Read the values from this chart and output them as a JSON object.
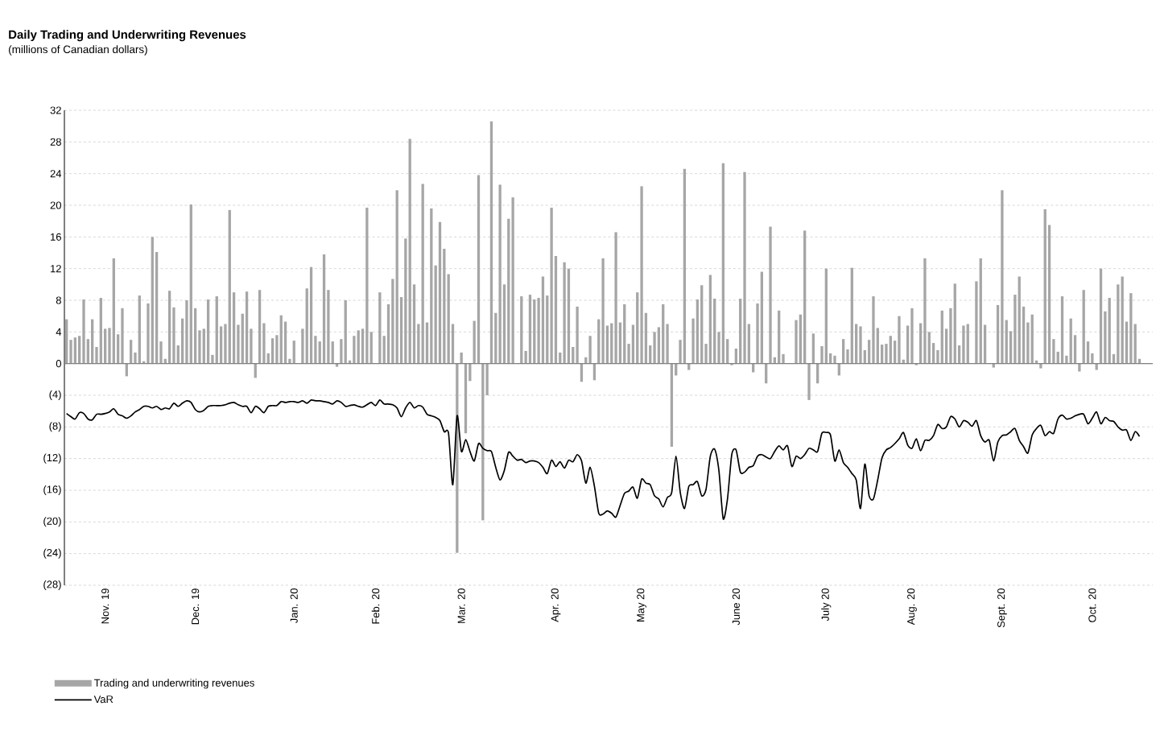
{
  "chart_data": {
    "type": "bar",
    "title": "Daily Trading and Underwriting Revenues",
    "subtitle": "(millions of Canadian dollars)",
    "categories": [
      null,
      null,
      null,
      null,
      null,
      null,
      null,
      null,
      null,
      "Nov. 19",
      null,
      null,
      null,
      null,
      null,
      null,
      null,
      null,
      null,
      null,
      null,
      null,
      null,
      null,
      null,
      null,
      null,
      null,
      null,
      null,
      "Dec. 19",
      null,
      null,
      null,
      null,
      null,
      null,
      null,
      null,
      null,
      null,
      null,
      null,
      null,
      null,
      null,
      null,
      null,
      null,
      null,
      null,
      null,
      null,
      "Jan. 20",
      null,
      null,
      null,
      null,
      null,
      null,
      null,
      null,
      null,
      null,
      null,
      null,
      null,
      null,
      null,
      null,
      null,
      null,
      "Feb. 20",
      null,
      null,
      null,
      null,
      null,
      null,
      null,
      null,
      null,
      null,
      null,
      null,
      null,
      null,
      null,
      null,
      null,
      null,
      null,
      "Mar. 20",
      null,
      null,
      null,
      null,
      null,
      null,
      null,
      null,
      null,
      null,
      null,
      null,
      null,
      null,
      null,
      null,
      null,
      null,
      null,
      null,
      null,
      "Apr. 20",
      null,
      null,
      null,
      null,
      null,
      null,
      null,
      null,
      null,
      null,
      null,
      null,
      null,
      null,
      null,
      null,
      null,
      null,
      null,
      "May 20",
      null,
      null,
      null,
      null,
      null,
      null,
      null,
      null,
      null,
      null,
      null,
      null,
      null,
      null,
      null,
      null,
      null,
      null,
      null,
      null,
      null,
      "June 20",
      null,
      null,
      null,
      null,
      null,
      null,
      null,
      null,
      null,
      null,
      null,
      null,
      null,
      null,
      null,
      null,
      null,
      null,
      null,
      null,
      "July 20",
      null,
      null,
      null,
      null,
      null,
      null,
      null,
      null,
      null,
      null,
      null,
      null,
      null,
      null,
      null,
      null,
      null,
      null,
      null,
      "Aug. 20",
      null,
      null,
      null,
      null,
      null,
      null,
      null,
      null,
      null,
      null,
      null,
      null,
      null,
      null,
      null,
      null,
      null,
      null,
      null,
      null,
      "Sept. 20",
      null,
      null,
      null,
      null,
      null,
      null,
      null,
      null,
      null,
      null,
      null,
      null,
      null,
      null,
      null,
      null,
      null,
      null,
      null,
      null,
      "Oct. 20",
      null,
      null,
      null,
      null,
      null,
      null,
      null,
      null,
      null,
      null,
      null
    ],
    "series": [
      {
        "name": "Trading and underwriting revenues",
        "color": "#a6a6a6",
        "values": [
          5.6,
          3.0,
          3.3,
          3.5,
          8.1,
          3.1,
          5.6,
          2.1,
          8.3,
          4.4,
          4.5,
          13.3,
          3.7,
          7.0,
          -1.6,
          3.0,
          1.4,
          8.6,
          0.3,
          7.6,
          16.0,
          14.1,
          2.8,
          0.6,
          9.2,
          7.1,
          2.3,
          5.7,
          8.0,
          20.1,
          7.0,
          4.2,
          4.4,
          8.1,
          1.1,
          8.5,
          4.7,
          5.0,
          19.4,
          9.0,
          4.9,
          6.3,
          9.1,
          4.4,
          -1.8,
          9.3,
          5.1,
          1.3,
          3.2,
          3.6,
          6.1,
          5.3,
          0.6,
          2.9,
          null,
          4.4,
          9.5,
          12.2,
          3.5,
          2.8,
          13.8,
          9.3,
          2.8,
          -0.4,
          3.1,
          8.0,
          0.4,
          3.5,
          4.2,
          4.4,
          19.7,
          4.0,
          null,
          9.0,
          3.5,
          7.5,
          10.7,
          21.9,
          8.4,
          15.8,
          28.4,
          10.0,
          5.0,
          22.7,
          5.2,
          19.6,
          12.4,
          17.9,
          14.5,
          11.3,
          5.0,
          -23.9,
          1.4,
          -8.8,
          -2.2,
          5.4,
          23.8,
          -19.8,
          -4.0,
          30.6,
          6.4,
          22.6,
          10.0,
          18.3,
          21.0,
          null,
          8.5,
          1.6,
          8.7,
          8.1,
          8.3,
          11.0,
          8.6,
          19.7,
          13.6,
          1.4,
          12.8,
          12.0,
          2.1,
          7.2,
          -2.3,
          0.8,
          3.5,
          -2.1,
          5.6,
          13.3,
          4.8,
          5.1,
          16.6,
          5.2,
          7.5,
          2.5,
          4.9,
          9.0,
          22.4,
          6.4,
          2.3,
          4.0,
          4.6,
          7.5,
          5.0,
          -10.5,
          -1.5,
          3.0,
          24.6,
          -0.8,
          5.7,
          8.1,
          9.9,
          2.5,
          11.2,
          8.2,
          4.0,
          25.3,
          3.1,
          -0.2,
          1.9,
          8.2,
          24.2,
          5.0,
          -1.1,
          7.6,
          11.6,
          -2.5,
          17.3,
          0.8,
          6.7,
          1.2,
          null,
          null,
          5.5,
          6.2,
          16.8,
          -4.6,
          3.8,
          -2.5,
          2.2,
          12.0,
          1.3,
          1.0,
          -1.5,
          3.1,
          1.8,
          12.1,
          5.0,
          4.7,
          1.7,
          3.0,
          8.5,
          4.5,
          2.4,
          2.5,
          3.5,
          2.9,
          6.0,
          0.5,
          4.8,
          7.0,
          -0.2,
          5.1,
          13.3,
          4.0,
          2.6,
          1.7,
          6.7,
          4.4,
          7.0,
          10.1,
          2.3,
          4.8,
          5.0,
          null,
          10.4,
          13.3,
          4.9,
          null,
          -0.5,
          7.4,
          21.9,
          5.5,
          4.1,
          8.7,
          11.0,
          7.2,
          5.2,
          6.2,
          0.4,
          -0.6,
          19.5,
          17.5,
          3.1,
          1.5,
          8.5,
          1.0,
          5.7,
          3.6,
          -1.0,
          9.3,
          2.8,
          1.3,
          -0.8,
          12.0,
          6.6,
          8.3,
          1.2,
          10.0,
          11.0,
          5.3,
          8.9,
          5.0,
          0.6
        ]
      },
      {
        "name": "VaR",
        "type": "line",
        "color": "#000000",
        "values": [
          -6.3,
          -6.7,
          -7.0,
          -6.2,
          -6.3,
          -7.0,
          -7.1,
          -6.4,
          -6.4,
          -6.3,
          -6.1,
          -5.7,
          -6.4,
          -6.6,
          -6.9,
          -6.6,
          -6.1,
          -5.8,
          -5.4,
          -5.4,
          -5.6,
          -5.4,
          -5.8,
          -5.6,
          -5.7,
          -5.0,
          -5.4,
          -5.0,
          -4.7,
          -4.9,
          -5.8,
          -6.1,
          -5.9,
          -5.4,
          -5.3,
          -5.3,
          -5.3,
          -5.2,
          -5.0,
          -4.9,
          -5.2,
          -5.4,
          -5.4,
          -6.2,
          -5.4,
          -5.7,
          -6.2,
          -5.4,
          -5.3,
          -5.3,
          -4.8,
          -4.9,
          -4.8,
          -4.8,
          -4.9,
          -4.7,
          -5.0,
          -4.6,
          -4.7,
          -4.7,
          -4.8,
          -4.9,
          -5.1,
          -4.7,
          -4.9,
          -5.4,
          -5.3,
          -5.2,
          -5.4,
          -5.5,
          -5.2,
          -4.9,
          -5.3,
          -4.6,
          -5.1,
          -5.1,
          -5.2,
          -5.6,
          -6.7,
          -5.6,
          -4.9,
          -5.6,
          -5.3,
          -5.5,
          -6.4,
          -6.6,
          -6.8,
          -7.2,
          -8.6,
          -8.8,
          -15.3,
          -6.6,
          -11.1,
          -9.6,
          -11.1,
          -12.3,
          -10.1,
          -10.7,
          -11.0,
          -11.1,
          -13.1,
          -14.7,
          -13.5,
          -11.2,
          -11.7,
          -12.2,
          -12.1,
          -12.5,
          -12.3,
          -12.3,
          -12.5,
          -13.1,
          -13.9,
          -12.2,
          -13.0,
          -12.4,
          -13.2,
          -12.2,
          -12.4,
          -11.5,
          -12.3,
          -15.1,
          -13.1,
          -15.5,
          -18.9,
          -19.0,
          -18.6,
          -18.9,
          -19.4,
          -17.9,
          -16.4,
          -16.1,
          -15.6,
          -17.0,
          -14.6,
          -15.1,
          -15.3,
          -16.7,
          -17.1,
          -18.1,
          -16.9,
          -16.3,
          -11.7,
          -16.3,
          -18.3,
          -15.5,
          -15.3,
          -14.9,
          -16.7,
          -15.9,
          -11.7,
          -10.8,
          -13.5,
          -19.6,
          -17.1,
          -11.5,
          -10.9,
          -13.7,
          -13.7,
          -13.1,
          -12.9,
          -11.7,
          -11.5,
          -11.8,
          -12.0,
          -11.1,
          -10.4,
          -10.9,
          -10.4,
          -13.0,
          -11.7,
          -12.0,
          -11.5,
          -10.7,
          -10.9,
          -11.1,
          -8.8,
          -8.7,
          -9.0,
          -12.3,
          -10.9,
          -12.5,
          -13.1,
          -13.9,
          -14.7,
          -18.3,
          -12.7,
          -16.7,
          -17.1,
          -14.7,
          -11.9,
          -10.9,
          -10.6,
          -10.1,
          -9.5,
          -8.7,
          -10.3,
          -10.7,
          -9.5,
          -11.0,
          -9.7,
          -9.7,
          -9.1,
          -7.7,
          -8.2,
          -8.0,
          -6.7,
          -7.0,
          -8.0,
          -7.2,
          -7.4,
          -7.9,
          -7.2,
          -9.1,
          -9.9,
          -9.7,
          -12.3,
          -9.9,
          -9.1,
          -9.0,
          -8.6,
          -8.2,
          -9.7,
          -10.5,
          -11.3,
          -9.0,
          -8.2,
          -7.8,
          -9.1,
          -8.6,
          -8.8,
          -7.0,
          -6.5,
          -7.0,
          -6.9,
          -6.6,
          -6.4,
          -6.4,
          -7.6,
          -6.9,
          -6.1,
          -7.6,
          -6.8,
          -7.2,
          -7.3,
          -8.0,
          -8.4,
          -8.4,
          -9.7,
          -8.6,
          -9.2
        ]
      }
    ],
    "ylim": [
      -28,
      32
    ],
    "yticks": [
      {
        "value": -28,
        "label": "(28)"
      },
      {
        "value": -24,
        "label": "(24)"
      },
      {
        "value": -20,
        "label": "(20)"
      },
      {
        "value": -16,
        "label": "(16)"
      },
      {
        "value": -12,
        "label": "(12)"
      },
      {
        "value": -8,
        "label": "(8)"
      },
      {
        "value": -4,
        "label": "(4)"
      },
      0,
      4,
      8,
      12,
      16,
      20,
      24,
      28,
      32
    ],
    "grid": "y",
    "legend": "bottom left",
    "marker": "none"
  }
}
